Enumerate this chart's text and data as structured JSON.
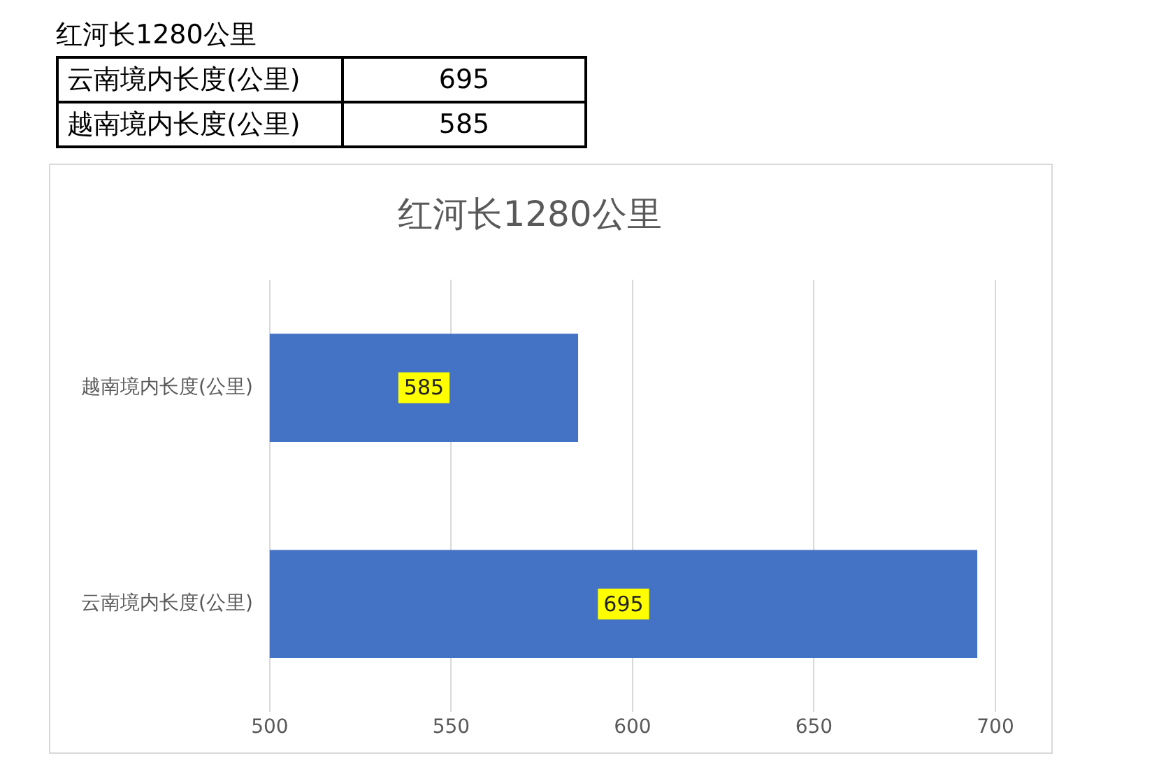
{
  "chart_data": [
    {
      "type": "other",
      "title": "红河长1280公里",
      "categories": [
        "云南境内长度(公里)",
        "越南境内长度(公里)"
      ],
      "values": [
        695,
        585
      ],
      "data_labels": true
    },
    {
      "type": "bar",
      "orientation": "horizontal",
      "title": "红河长1280公里",
      "categories": [
        "越南境内长度(公里)",
        "云南境内长度(公里)"
      ],
      "values": [
        585,
        695
      ],
      "color": "#4472c4",
      "xlim": [
        500,
        700
      ],
      "xticks": [
        500,
        550,
        600,
        650,
        700
      ],
      "grid": "x",
      "legend": false,
      "data_labels": true
    }
  ]
}
